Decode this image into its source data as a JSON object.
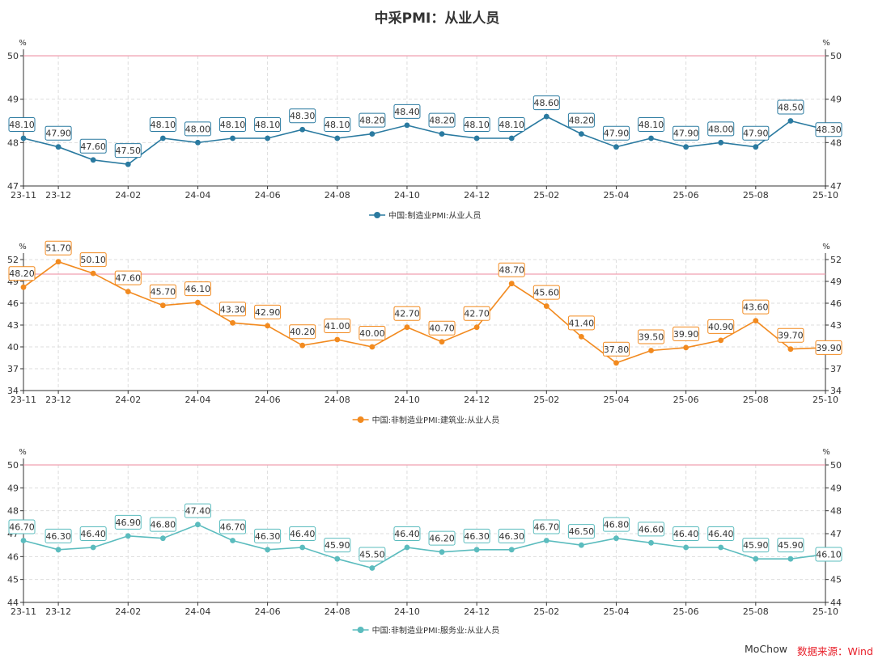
{
  "title": "中采PMI：从业人员",
  "footer": {
    "author": "MoChow",
    "source": "数据来源：Wind"
  },
  "colors": {
    "reference_line": "#f1a0b0",
    "grid": "#dddddd",
    "axis": "#333333",
    "tick_text": "#333333"
  },
  "chart_data": [
    {
      "type": "line",
      "series_name": "中国:制造业PMI:从业人员",
      "color": "#2a7aa0",
      "unit": "%",
      "ylim": [
        47,
        50
      ],
      "yticks": [
        47,
        48,
        49,
        50
      ],
      "reference": 50,
      "x": [
        "23-11",
        "23-12",
        "24-01",
        "24-02",
        "24-03",
        "24-04",
        "24-05",
        "24-06",
        "24-07",
        "24-08",
        "24-09",
        "24-10",
        "24-11",
        "24-12",
        "25-01",
        "25-02",
        "25-03",
        "25-04",
        "25-05",
        "25-06",
        "25-07",
        "25-08",
        "25-09",
        "25-10"
      ],
      "xtick_labels": [
        "23-11",
        "23-12",
        "24-02",
        "24-04",
        "24-06",
        "24-08",
        "24-10",
        "24-12",
        "25-02",
        "25-04",
        "25-06",
        "25-08",
        "25-10"
      ],
      "values": [
        48.1,
        47.9,
        47.6,
        47.5,
        48.1,
        48.0,
        48.1,
        48.1,
        48.3,
        48.1,
        48.2,
        48.4,
        48.2,
        48.1,
        48.1,
        48.6,
        48.2,
        47.9,
        48.1,
        47.9,
        48.0,
        47.9,
        48.5,
        48.3
      ],
      "labels": [
        "48.10",
        "47.90",
        "47.60",
        "47.50",
        "48.10",
        "48.00",
        "48.10",
        "48.10",
        "48.30",
        "48.10",
        "48.20",
        "48.40",
        "48.20",
        "48.10",
        "48.10",
        "48.60",
        "48.20",
        "47.90",
        "48.10",
        "47.90",
        "48.00",
        "47.90",
        "48.50",
        "48.30"
      ]
    },
    {
      "type": "line",
      "series_name": "中国:非制造业PMI:建筑业:从业人员",
      "color": "#f28a1f",
      "unit": "%",
      "ylim": [
        34,
        52
      ],
      "yticks": [
        34,
        37,
        40,
        43,
        46,
        49,
        52
      ],
      "reference": 50,
      "x": [
        "23-11",
        "23-12",
        "24-01",
        "24-02",
        "24-03",
        "24-04",
        "24-05",
        "24-06",
        "24-07",
        "24-08",
        "24-09",
        "24-10",
        "24-11",
        "24-12",
        "25-01",
        "25-02",
        "25-03",
        "25-04",
        "25-05",
        "25-06",
        "25-07",
        "25-08",
        "25-09",
        "25-10"
      ],
      "xtick_labels": [
        "23-11",
        "23-12",
        "24-02",
        "24-04",
        "24-06",
        "24-08",
        "24-10",
        "24-12",
        "25-02",
        "25-04",
        "25-06",
        "25-08",
        "25-10"
      ],
      "values": [
        48.2,
        51.7,
        50.1,
        47.6,
        45.7,
        46.1,
        43.3,
        42.9,
        40.2,
        41.0,
        40.0,
        42.7,
        40.7,
        42.7,
        48.7,
        45.6,
        41.4,
        37.8,
        39.5,
        39.9,
        40.9,
        43.6,
        39.7,
        39.9
      ],
      "labels": [
        "48.20",
        "51.70",
        "50.10",
        "47.60",
        "45.70",
        "46.10",
        "43.30",
        "42.90",
        "40.20",
        "41.00",
        "40.00",
        "42.70",
        "40.70",
        "42.70",
        "48.70",
        "45.60",
        "41.40",
        "37.80",
        "39.50",
        "39.90",
        "40.90",
        "43.60",
        "39.70",
        "39.90"
      ]
    },
    {
      "type": "line",
      "series_name": "中国:非制造业PMI:服务业:从业人员",
      "color": "#5bbcbe",
      "unit": "%",
      "ylim": [
        44,
        50
      ],
      "yticks": [
        44,
        45,
        46,
        47,
        48,
        49,
        50
      ],
      "reference": 50,
      "x": [
        "23-11",
        "23-12",
        "24-01",
        "24-02",
        "24-03",
        "24-04",
        "24-05",
        "24-06",
        "24-07",
        "24-08",
        "24-09",
        "24-10",
        "24-11",
        "24-12",
        "25-01",
        "25-02",
        "25-03",
        "25-04",
        "25-05",
        "25-06",
        "25-07",
        "25-08",
        "25-09",
        "25-10"
      ],
      "xtick_labels": [
        "23-11",
        "23-12",
        "24-02",
        "24-04",
        "24-06",
        "24-08",
        "24-10",
        "24-12",
        "25-02",
        "25-04",
        "25-06",
        "25-08",
        "25-10"
      ],
      "values": [
        46.7,
        46.3,
        46.4,
        46.9,
        46.8,
        47.4,
        46.7,
        46.3,
        46.4,
        45.9,
        45.5,
        46.4,
        46.2,
        46.3,
        46.3,
        46.7,
        46.5,
        46.8,
        46.6,
        46.4,
        46.4,
        45.9,
        45.9,
        46.1
      ],
      "labels": [
        "46.70",
        "46.30",
        "46.40",
        "46.90",
        "46.80",
        "47.40",
        "46.70",
        "46.30",
        "46.40",
        "45.90",
        "45.50",
        "46.40",
        "46.20",
        "46.30",
        "46.30",
        "46.70",
        "46.50",
        "46.80",
        "46.60",
        "46.40",
        "46.40",
        "45.90",
        "45.90",
        "46.10"
      ]
    }
  ]
}
